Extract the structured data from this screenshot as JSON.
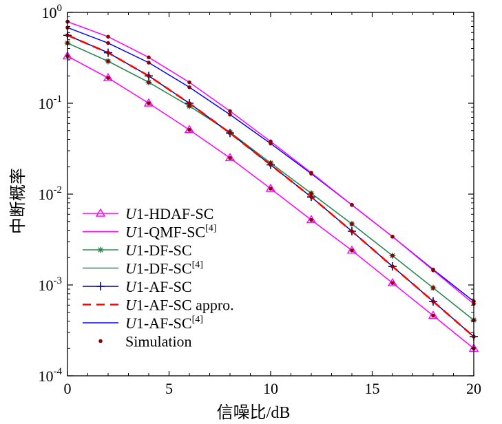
{
  "chart_data": {
    "type": "line",
    "xlabel": "信噪比/dB",
    "ylabel": "中断概率",
    "xlim": [
      0,
      20
    ],
    "ylim": [
      0.0001,
      1
    ],
    "yscale": "log",
    "x_ticks": [
      0,
      5,
      10,
      15,
      20
    ],
    "x_tick_labels": [
      "0",
      "5",
      "10",
      "15",
      "20"
    ],
    "y_ticks": [
      {
        "value": 1,
        "base": "10",
        "exp": "0"
      },
      {
        "value": 0.1,
        "base": "10",
        "exp": "-1"
      },
      {
        "value": 0.01,
        "base": "10",
        "exp": "-2"
      },
      {
        "value": 0.001,
        "base": "10",
        "exp": "-3"
      },
      {
        "value": 0.0001,
        "base": "10",
        "exp": "-4"
      }
    ],
    "grid": false,
    "legend_position": "bottom-left",
    "x": [
      0,
      2,
      4,
      6,
      8,
      10,
      12,
      14,
      16,
      18,
      20
    ],
    "series": [
      {
        "name": "U1-HDAF-SC",
        "name_italic": "U",
        "name_rest": "1-HDAF-SC",
        "name_sup": "",
        "color": "#ff00ff",
        "marker": "triangle",
        "dash": "",
        "values": [
          0.33,
          0.19,
          0.1,
          0.051,
          0.025,
          0.0115,
          0.0052,
          0.0024,
          0.00105,
          0.00046,
          0.0002
        ]
      },
      {
        "name": "U1-QMF-SC[4]",
        "name_italic": "U",
        "name_rest": "1-QMF-SC",
        "name_sup": "[4]",
        "color": "#ff00ff",
        "marker": "none",
        "dash": "",
        "values": [
          0.79,
          0.54,
          0.32,
          0.17,
          0.082,
          0.038,
          0.0172,
          0.0076,
          0.0034,
          0.00145,
          0.00062
        ]
      },
      {
        "name": "U1-DF-SC",
        "name_italic": "U",
        "name_rest": "1-DF-SC",
        "name_sup": "",
        "color": "#2e8b57",
        "marker": "asterisk",
        "dash": "",
        "values": [
          0.46,
          0.29,
          0.17,
          0.093,
          0.048,
          0.022,
          0.0102,
          0.0047,
          0.0021,
          0.00093,
          0.00041
        ]
      },
      {
        "name": "U1-DF-SC[4]",
        "name_italic": "U",
        "name_rest": "1-DF-SC",
        "name_sup": "[4]",
        "color": "#2e8b57",
        "marker": "none",
        "dash": "",
        "values": [
          0.46,
          0.29,
          0.17,
          0.093,
          0.048,
          0.022,
          0.0102,
          0.0047,
          0.0021,
          0.00093,
          0.00041
        ]
      },
      {
        "name": "U1-AF-SC",
        "name_italic": "U",
        "name_rest": "1-AF-SC",
        "name_sup": "",
        "color": "#00008b",
        "marker": "plus",
        "dash": "",
        "values": [
          0.56,
          0.36,
          0.2,
          0.1,
          0.047,
          0.021,
          0.0093,
          0.0039,
          0.0016,
          0.00066,
          0.00027
        ]
      },
      {
        "name": "U1-AF-SC appro.",
        "name_italic": "U",
        "name_rest": "1-AF-SC appro.",
        "name_sup": "",
        "color": "#ff0000",
        "marker": "none",
        "dash": "12,8",
        "values": [
          0.56,
          0.36,
          0.2,
          0.1,
          0.047,
          0.021,
          0.0093,
          0.0039,
          0.0016,
          0.00066,
          0.00027
        ]
      },
      {
        "name": "U1-AF-SC[4]",
        "name_italic": "U",
        "name_rest": "1-AF-SC",
        "name_sup": "[4]",
        "color": "#0000ff",
        "marker": "none",
        "dash": "",
        "values": [
          0.68,
          0.46,
          0.28,
          0.15,
          0.075,
          0.036,
          0.0168,
          0.0076,
          0.0034,
          0.00148,
          0.00066
        ]
      }
    ],
    "simulation": {
      "name": "Simulation",
      "color": "#8b0000",
      "marker": "dot",
      "sets": [
        [
          0.33,
          0.19,
          0.1,
          0.051,
          0.025,
          0.0115,
          0.0052,
          0.0024,
          0.00105,
          0.00046,
          0.0002
        ],
        [
          0.46,
          0.29,
          0.17,
          0.093,
          0.048,
          0.022,
          0.0102,
          0.0047,
          0.0021,
          0.00093,
          0.00041
        ],
        [
          0.56,
          0.36,
          0.2,
          0.1,
          0.047,
          0.021,
          0.0093,
          0.0039,
          0.0016,
          0.00066,
          0.00027
        ],
        [
          0.68,
          0.46,
          0.28,
          0.15,
          0.075,
          0.036,
          0.0168,
          0.0076,
          0.0034,
          0.00148,
          0.00066
        ],
        [
          0.79,
          0.54,
          0.32,
          0.17,
          0.082,
          0.038,
          0.0172,
          0.0076,
          0.0034,
          0.00145,
          0.00062
        ]
      ]
    }
  }
}
